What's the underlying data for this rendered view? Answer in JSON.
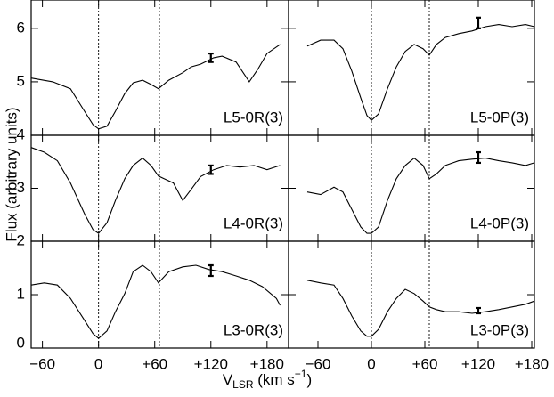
{
  "ylabel": "Flux (arbitrary units)",
  "xlabel": {
    "main": "V",
    "sub": "LSR",
    "mid": " (km s",
    "sup": "−1",
    "end": ")"
  },
  "chart_data": [
    {
      "type": "line",
      "annotation": "L5-0R(3)",
      "xlim": [
        -72,
        203
      ],
      "ylim": [
        4,
        6.53
      ],
      "xticks": [
        -60,
        0,
        60,
        120,
        180
      ],
      "yticks": [
        4,
        5,
        6
      ],
      "vlines": [
        0,
        65
      ],
      "errorbar": {
        "x": 120,
        "y": 5.45,
        "err": 0.08
      },
      "x": [
        -72,
        -49,
        -30,
        -15,
        -6,
        0,
        9,
        18,
        28,
        37,
        47,
        56,
        64,
        75,
        90,
        99,
        109,
        123,
        132,
        147,
        161,
        170,
        180,
        194
      ],
      "values": [
        5.07,
        5.0,
        4.87,
        4.45,
        4.2,
        4.12,
        4.17,
        4.45,
        4.78,
        4.98,
        5.03,
        4.95,
        4.87,
        5.03,
        5.17,
        5.28,
        5.33,
        5.45,
        5.48,
        5.37,
        5.0,
        5.23,
        5.53,
        5.7
      ]
    },
    {
      "type": "line",
      "annotation": "L5-0P(3)",
      "xlim": [
        -93,
        183
      ],
      "ylim": [
        4,
        6.53
      ],
      "xticks": [
        -60,
        0,
        60,
        120,
        180
      ],
      "yticks": [
        4,
        5,
        6
      ],
      "vlines": [
        0,
        65
      ],
      "errorbar": {
        "x": 120,
        "y": 6.1,
        "err": 0.1
      },
      "x": [
        -72,
        -57,
        -42,
        -32,
        -22,
        -12,
        -5,
        0,
        8,
        18,
        28,
        38,
        48,
        58,
        65,
        73,
        83,
        98,
        113,
        128,
        143,
        158,
        173,
        183
      ],
      "values": [
        5.67,
        5.78,
        5.78,
        5.62,
        5.2,
        4.7,
        4.37,
        4.28,
        4.4,
        4.87,
        5.28,
        5.57,
        5.7,
        5.62,
        5.5,
        5.7,
        5.83,
        5.9,
        5.95,
        6.03,
        6.07,
        6.03,
        6.07,
        6.03
      ]
    },
    {
      "type": "line",
      "annotation": "L4-0R(3)",
      "xlim": [
        -72,
        203
      ],
      "ylim": [
        2,
        4
      ],
      "xticks": [
        -60,
        0,
        60,
        120,
        180
      ],
      "yticks": [
        2,
        3
      ],
      "vlines": [
        0,
        65
      ],
      "errorbar": {
        "x": 120,
        "y": 3.35,
        "err": 0.08
      },
      "x": [
        -72,
        -58,
        -44,
        -30,
        -15,
        -6,
        0,
        9,
        18,
        28,
        37,
        47,
        56,
        64,
        70,
        80,
        90,
        99,
        109,
        123,
        137,
        151,
        166,
        180,
        194
      ],
      "values": [
        3.77,
        3.68,
        3.52,
        3.1,
        2.52,
        2.22,
        2.15,
        2.35,
        2.77,
        3.18,
        3.43,
        3.57,
        3.43,
        3.23,
        3.18,
        3.1,
        2.77,
        2.98,
        3.22,
        3.35,
        3.43,
        3.4,
        3.43,
        3.35,
        3.43
      ]
    },
    {
      "type": "line",
      "annotation": "L4-0P(3)",
      "xlim": [
        -93,
        183
      ],
      "ylim": [
        2,
        4
      ],
      "xticks": [
        -60,
        0,
        60,
        120,
        180
      ],
      "yticks": [
        2,
        3
      ],
      "vlines": [
        0,
        65
      ],
      "errorbar": {
        "x": 120,
        "y": 3.58,
        "err": 0.1
      },
      "x": [
        -72,
        -57,
        -42,
        -32,
        -22,
        -12,
        -5,
        0,
        8,
        18,
        28,
        38,
        48,
        58,
        65,
        73,
        83,
        98,
        113,
        128,
        143,
        158,
        173,
        183
      ],
      "values": [
        2.93,
        2.88,
        3.02,
        2.93,
        2.6,
        2.27,
        2.15,
        2.15,
        2.27,
        2.77,
        3.18,
        3.43,
        3.57,
        3.43,
        3.18,
        3.27,
        3.43,
        3.52,
        3.55,
        3.57,
        3.52,
        3.48,
        3.43,
        3.48
      ]
    },
    {
      "type": "line",
      "annotation": "L3-0R(3)",
      "xlim": [
        -72,
        203
      ],
      "ylim": [
        0,
        2
      ],
      "xticks": [
        {
          "value": -60,
          "label": "−60"
        },
        0,
        {
          "value": 60,
          "label": "+60"
        },
        {
          "value": 120,
          "label": "+120"
        },
        {
          "value": 180,
          "label": "+180"
        }
      ],
      "yticks": [
        0,
        1
      ],
      "vlines": [
        0,
        65
      ],
      "errorbar": {
        "x": 120,
        "y": 1.45,
        "err": 0.1
      },
      "x": [
        -72,
        -58,
        -44,
        -30,
        -15,
        -6,
        0,
        9,
        18,
        28,
        37,
        47,
        56,
        64,
        75,
        90,
        104,
        118,
        132,
        147,
        161,
        175,
        190,
        194
      ],
      "values": [
        1.18,
        1.22,
        1.18,
        0.93,
        0.52,
        0.27,
        0.18,
        0.32,
        0.68,
        1.02,
        1.43,
        1.55,
        1.43,
        1.22,
        1.43,
        1.52,
        1.55,
        1.47,
        1.43,
        1.35,
        1.27,
        1.15,
        0.93,
        0.8
      ]
    },
    {
      "type": "line",
      "annotation": "L3-0P(3)",
      "xlim": [
        -93,
        183
      ],
      "ylim": [
        0,
        2
      ],
      "xticks": [
        {
          "value": -60,
          "label": "−60"
        },
        0,
        {
          "value": 60,
          "label": "+60"
        },
        {
          "value": 120,
          "label": "+120"
        },
        {
          "value": 180,
          "label": "+180"
        }
      ],
      "yticks": [
        0,
        1
      ],
      "vlines": [
        0,
        65
      ],
      "errorbar": {
        "x": 120,
        "y": 0.7,
        "err": 0.05
      },
      "x": [
        -72,
        -57,
        -42,
        -32,
        -22,
        -12,
        -5,
        0,
        8,
        18,
        28,
        38,
        48,
        58,
        65,
        73,
        83,
        98,
        113,
        128,
        143,
        158,
        173,
        183
      ],
      "values": [
        1.27,
        1.22,
        1.18,
        0.93,
        0.6,
        0.32,
        0.22,
        0.22,
        0.35,
        0.68,
        0.93,
        1.1,
        1.02,
        0.88,
        0.77,
        0.72,
        0.68,
        0.68,
        0.65,
        0.68,
        0.72,
        0.77,
        0.82,
        0.88
      ]
    }
  ]
}
